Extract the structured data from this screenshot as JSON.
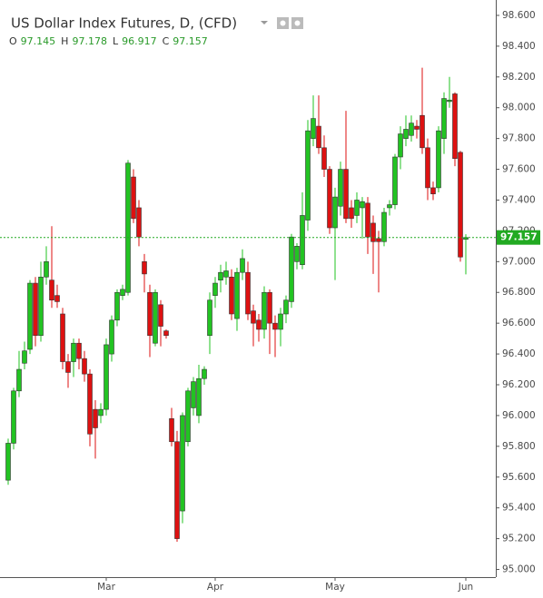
{
  "chart_data": {
    "type": "candlestick",
    "title": "US Dollar Index Futures, D, (CFD)",
    "ohlc_keys": [
      "O",
      "H",
      "L",
      "C"
    ],
    "categories": [
      null,
      null,
      null,
      null,
      null,
      null,
      null,
      null,
      null,
      null,
      null,
      null,
      null,
      null,
      null,
      null,
      null,
      null,
      "Mar",
      null,
      null,
      null,
      null,
      null,
      null,
      null,
      null,
      null,
      null,
      null,
      null,
      null,
      null,
      null,
      null,
      null,
      null,
      null,
      "Apr",
      null,
      null,
      null,
      null,
      null,
      null,
      null,
      null,
      null,
      null,
      null,
      null,
      null,
      null,
      null,
      null,
      null,
      null,
      null,
      null,
      null,
      "May",
      null,
      null,
      null,
      null,
      null,
      null,
      null,
      null,
      null,
      null,
      null,
      null,
      null,
      null,
      null,
      null,
      null,
      null,
      null,
      null,
      null,
      null,
      null,
      "Jun"
    ],
    "open": [
      95.58,
      95.82,
      96.16,
      96.34,
      96.43,
      96.86,
      96.52,
      96.9,
      96.88,
      96.78,
      96.66,
      96.35,
      96.35,
      96.47,
      96.37,
      96.27,
      96.04,
      96.0,
      96.04,
      96.4,
      96.62,
      96.78,
      96.8,
      97.55,
      97.35,
      97.0,
      96.8,
      96.47,
      96.72,
      96.55,
      95.98,
      95.83,
      95.38,
      95.83,
      96.05,
      96.0,
      96.24,
      96.52,
      96.78,
      96.88,
      96.9,
      96.9,
      96.63,
      96.93,
      96.93,
      96.68,
      96.62,
      96.56,
      96.8,
      96.6,
      96.56,
      96.66,
      96.74,
      97.0,
      96.98,
      97.27,
      97.8,
      97.88,
      97.74,
      97.6,
      97.22,
      97.36,
      97.6,
      97.35,
      97.3,
      97.35,
      97.38,
      97.25,
      97.15,
      97.13,
      97.35,
      97.37,
      97.68,
      97.8,
      97.82,
      97.88,
      97.95,
      97.74,
      97.48,
      97.48,
      97.8,
      98.04,
      98.09,
      97.71,
      97.145
    ],
    "high": [
      95.85,
      96.18,
      96.42,
      96.48,
      96.88,
      96.9,
      97.0,
      97.1,
      97.23,
      96.85,
      96.7,
      96.4,
      96.5,
      96.5,
      96.42,
      96.3,
      96.1,
      96.08,
      96.5,
      96.65,
      96.82,
      96.85,
      97.66,
      97.6,
      97.4,
      97.05,
      96.85,
      96.82,
      96.75,
      96.56,
      96.05,
      95.9,
      96.02,
      96.18,
      96.25,
      96.33,
      96.32,
      96.8,
      96.9,
      96.98,
      97.0,
      96.95,
      96.96,
      97.08,
      97.0,
      96.72,
      96.66,
      96.84,
      96.82,
      96.65,
      96.7,
      96.78,
      97.18,
      97.12,
      97.45,
      97.92,
      98.08,
      98.08,
      97.82,
      97.62,
      97.48,
      97.65,
      97.98,
      97.4,
      97.45,
      97.42,
      97.42,
      97.3,
      97.2,
      97.35,
      97.4,
      97.7,
      97.88,
      97.95,
      97.95,
      97.92,
      98.26,
      97.8,
      97.52,
      97.88,
      98.1,
      98.2,
      98.1,
      97.72,
      97.178
    ],
    "low": [
      95.55,
      95.78,
      96.12,
      96.3,
      96.4,
      96.45,
      96.48,
      96.85,
      96.7,
      96.7,
      96.3,
      96.18,
      96.25,
      96.3,
      96.22,
      95.8,
      95.72,
      95.95,
      96.0,
      96.35,
      96.58,
      96.75,
      96.78,
      97.25,
      97.1,
      96.8,
      96.38,
      96.45,
      96.45,
      96.5,
      95.8,
      95.18,
      95.3,
      95.8,
      96.0,
      95.95,
      96.2,
      96.4,
      96.7,
      96.8,
      96.85,
      96.62,
      96.55,
      96.88,
      96.62,
      96.45,
      96.48,
      96.5,
      96.4,
      96.38,
      96.45,
      96.6,
      96.7,
      96.95,
      96.95,
      97.2,
      97.75,
      97.7,
      97.55,
      97.18,
      96.88,
      97.3,
      97.25,
      97.22,
      97.25,
      97.15,
      97.05,
      96.92,
      96.8,
      97.1,
      97.3,
      97.34,
      97.6,
      97.75,
      97.78,
      97.8,
      97.7,
      97.4,
      97.4,
      97.45,
      97.7,
      98.0,
      97.62,
      97.0,
      96.917
    ],
    "close": [
      95.82,
      96.16,
      96.3,
      96.42,
      96.86,
      96.52,
      96.9,
      97.0,
      96.75,
      96.74,
      96.35,
      96.28,
      96.47,
      96.37,
      96.27,
      95.88,
      95.92,
      96.04,
      96.46,
      96.62,
      96.8,
      96.82,
      97.64,
      97.28,
      97.16,
      96.92,
      96.52,
      96.8,
      96.58,
      96.52,
      95.83,
      95.2,
      96.0,
      96.16,
      96.22,
      96.24,
      96.3,
      96.75,
      96.86,
      96.93,
      96.94,
      96.66,
      96.93,
      97.02,
      96.66,
      96.6,
      96.56,
      96.8,
      96.6,
      96.56,
      96.66,
      96.75,
      97.16,
      97.1,
      97.3,
      97.85,
      97.93,
      97.74,
      97.6,
      97.22,
      97.42,
      97.6,
      97.28,
      97.28,
      97.4,
      97.39,
      97.16,
      97.13,
      97.13,
      97.32,
      97.37,
      97.68,
      97.83,
      97.86,
      97.9,
      97.86,
      97.74,
      97.48,
      97.44,
      97.85,
      98.06,
      98.05,
      97.67,
      97.03,
      97.157
    ],
    "up_color": "#22c322",
    "down_color": "#dd1111",
    "outline_color": "#333333",
    "last_price": 97.157,
    "last_price_color": "#22aa22",
    "ylim": [
      94.95,
      98.7
    ],
    "yticks": [
      {
        "value": 95,
        "label": "95.000"
      },
      {
        "value": 95.2,
        "label": "95.200"
      },
      {
        "value": 95.4,
        "label": "95.400"
      },
      {
        "value": 95.6,
        "label": "95.600"
      },
      {
        "value": 95.8,
        "label": "95.800"
      },
      {
        "value": 96,
        "label": "96.000"
      },
      {
        "value": 96.2,
        "label": "96.200"
      },
      {
        "value": 96.4,
        "label": "96.400"
      },
      {
        "value": 96.6,
        "label": "96.600"
      },
      {
        "value": 96.8,
        "label": "96.800"
      },
      {
        "value": 97,
        "label": "97.000"
      },
      {
        "value": 97.2,
        "label": "97.200"
      },
      {
        "value": 97.4,
        "label": "97.400"
      },
      {
        "value": 97.6,
        "label": "97.600"
      },
      {
        "value": 97.8,
        "label": "97.800"
      },
      {
        "value": 98,
        "label": "98.000"
      },
      {
        "value": 98.2,
        "label": "98.200"
      },
      {
        "value": 98.4,
        "label": "98.400"
      },
      {
        "value": 98.6,
        "label": "98.600"
      }
    ],
    "grid": false
  }
}
